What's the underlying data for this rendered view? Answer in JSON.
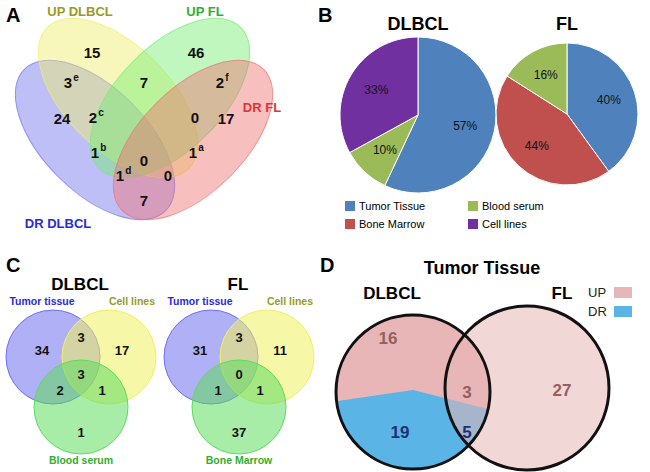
{
  "chart_data": [
    {
      "type": "venn",
      "panel": "A",
      "sets": [
        {
          "name": "DR DLBCL",
          "color": "#7070f0"
        },
        {
          "name": "UP DLBCL",
          "color": "#eeee6a"
        },
        {
          "name": "UP FL",
          "color": "#70ee70"
        },
        {
          "name": "DR FL",
          "color": "#f07070"
        }
      ],
      "regions": [
        {
          "sets": [
            "DR DLBCL"
          ],
          "value": 24
        },
        {
          "sets": [
            "UP DLBCL"
          ],
          "value": 15
        },
        {
          "sets": [
            "UP FL"
          ],
          "value": 46
        },
        {
          "sets": [
            "DR FL"
          ],
          "value": 17
        },
        {
          "sets": [
            "DR DLBCL",
            "UP DLBCL"
          ],
          "value": 3,
          "superscript": "e"
        },
        {
          "sets": [
            "UP DLBCL",
            "UP FL"
          ],
          "value": 7
        },
        {
          "sets": [
            "UP FL",
            "DR FL"
          ],
          "value": 2,
          "superscript": "f"
        },
        {
          "sets": [
            "DR DLBCL",
            "UP DLBCL",
            "UP FL"
          ],
          "value": 2,
          "superscript": "c"
        },
        {
          "sets": [
            "UP DLBCL",
            "UP FL",
            "DR FL"
          ],
          "value": 0
        },
        {
          "sets": [
            "DR DLBCL",
            "UP FL"
          ],
          "value": 1,
          "superscript": "b"
        },
        {
          "sets": [
            "UP DLBCL",
            "DR FL"
          ],
          "value": 1,
          "superscript": "a"
        },
        {
          "sets": [
            "DR DLBCL",
            "UP DLBCL",
            "UP FL",
            "DR FL"
          ],
          "value": 0
        },
        {
          "sets": [
            "DR DLBCL",
            "UP FL",
            "DR FL"
          ],
          "value": 1,
          "superscript": "d"
        },
        {
          "sets": [
            "DR DLBCL",
            "UP DLBCL",
            "DR FL"
          ],
          "value": 0
        },
        {
          "sets": [
            "DR DLBCL",
            "DR FL"
          ],
          "value": 7
        }
      ]
    },
    {
      "type": "pie",
      "panel": "B",
      "categories": [
        "Tumor Tissue",
        "Bone Marrow",
        "Blood serum",
        "Cell lines"
      ],
      "colors": [
        "#4f81bd",
        "#c0504d",
        "#9bbb59",
        "#7030a0"
      ],
      "series": [
        {
          "name": "DLBCL",
          "values": [
            57,
            null,
            10,
            33
          ],
          "value_labels": [
            "57%",
            null,
            "10%",
            "33%"
          ]
        },
        {
          "name": "FL",
          "values": [
            40,
            44,
            16,
            null
          ],
          "value_labels": [
            "40%",
            "44%",
            "16%",
            null
          ]
        }
      ],
      "data_labels": true,
      "legend": "bottom"
    },
    {
      "type": "venn",
      "panel": "C",
      "title": "DLBCL",
      "sets": [
        {
          "name": "Tumor tissue",
          "color": "#6f6ff0"
        },
        {
          "name": "Cell lines",
          "color": "#f0f060"
        },
        {
          "name": "Blood serum",
          "color": "#5fdc5f"
        }
      ],
      "regions": [
        {
          "sets": [
            "Tumor tissue"
          ],
          "value": 34
        },
        {
          "sets": [
            "Cell lines"
          ],
          "value": 17
        },
        {
          "sets": [
            "Blood serum"
          ],
          "value": 1
        },
        {
          "sets": [
            "Tumor tissue",
            "Cell lines"
          ],
          "value": 3
        },
        {
          "sets": [
            "Tumor tissue",
            "Blood serum"
          ],
          "value": 2
        },
        {
          "sets": [
            "Cell lines",
            "Blood serum"
          ],
          "value": 1
        },
        {
          "sets": [
            "Tumor tissue",
            "Cell lines",
            "Blood serum"
          ],
          "value": 3
        }
      ]
    },
    {
      "type": "venn",
      "title": "FL",
      "sets": [
        {
          "name": "Tumor tissue",
          "color": "#6f6ff0"
        },
        {
          "name": "Cell lines",
          "color": "#f0f060"
        },
        {
          "name": "Bone Marrow",
          "color": "#5fdc5f"
        }
      ],
      "regions": [
        {
          "sets": [
            "Tumor tissue"
          ],
          "value": 31
        },
        {
          "sets": [
            "Cell lines"
          ],
          "value": 11
        },
        {
          "sets": [
            "Bone Marrow"
          ],
          "value": 37
        },
        {
          "sets": [
            "Tumor tissue",
            "Cell lines"
          ],
          "value": 3
        },
        {
          "sets": [
            "Tumor tissue",
            "Bone Marrow"
          ],
          "value": 1
        },
        {
          "sets": [
            "Cell lines",
            "Bone Marrow"
          ],
          "value": 1
        },
        {
          "sets": [
            "Tumor tissue",
            "Cell lines",
            "Bone Marrow"
          ],
          "value": 0
        }
      ]
    },
    {
      "type": "venn",
      "panel": "D",
      "title": "Tumor Tissue",
      "sets": [
        {
          "name": "DLBCL"
        },
        {
          "name": "FL"
        }
      ],
      "series": [
        {
          "name": "UP",
          "color": "#e8b6b6"
        },
        {
          "name": "DR",
          "color": "#5ab4e6"
        }
      ],
      "legend": "top-right",
      "regions": [
        {
          "sets": [
            "DLBCL"
          ],
          "series": "UP",
          "value": 16
        },
        {
          "sets": [
            "DLBCL"
          ],
          "series": "DR",
          "value": 19
        },
        {
          "sets": [
            "DLBCL",
            "FL"
          ],
          "series": "UP",
          "value": 3
        },
        {
          "sets": [
            "DLBCL",
            "FL"
          ],
          "series": "DR",
          "value": 5
        },
        {
          "sets": [
            "FL"
          ],
          "series": "UP",
          "value": 27
        }
      ]
    }
  ]
}
